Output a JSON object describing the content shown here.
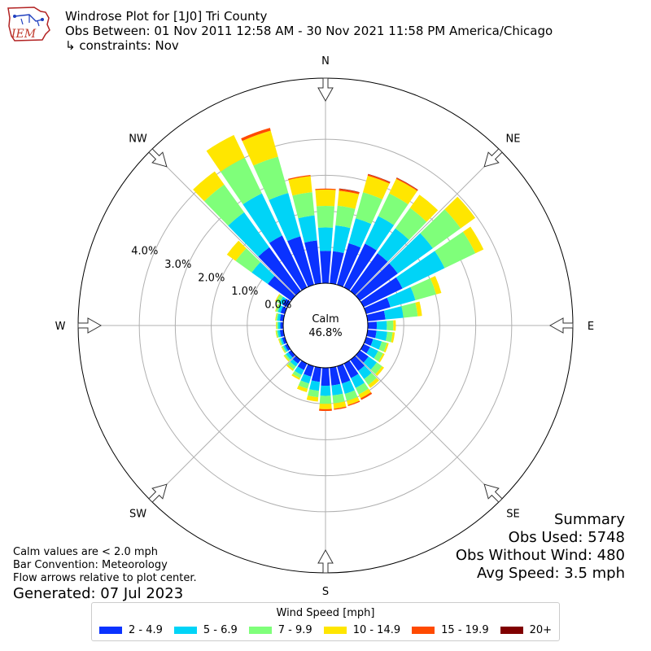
{
  "header": {
    "logo_text": "IEM",
    "title": "Windrose Plot for [1J0] Tri County",
    "subtitle": "Obs Between: 01 Nov 2011 12:58 AM - 30 Nov 2021 11:58 PM America/Chicago",
    "constraints": "↳ constraints: Nov"
  },
  "notes": {
    "calm_def": "Calm values are < 2.0 mph",
    "bar_convention": "Bar Convention: Meteorology",
    "flow_arrows": "Flow arrows relative to plot center.",
    "generated": "Generated: 07 Jul 2023"
  },
  "summary": {
    "heading": "Summary",
    "obs_used": "Obs Used: 5748",
    "obs_without_wind": "Obs Without Wind: 480",
    "avg_speed": "Avg Speed: 3.5 mph"
  },
  "chart_data": {
    "type": "windrose",
    "calm_label": "Calm",
    "calm_value": "46.8%",
    "radial_ticks": [
      {
        "value": 0,
        "label": "0.0%"
      },
      {
        "value": 1,
        "label": "1.0%"
      },
      {
        "value": 2,
        "label": "2.0%"
      },
      {
        "value": 3,
        "label": "3.0%"
      },
      {
        "value": 4,
        "label": "4.0%"
      }
    ],
    "rmax": 5.7,
    "compass": [
      {
        "label": "N",
        "angle": 0
      },
      {
        "label": "NE",
        "angle": 45
      },
      {
        "label": "E",
        "angle": 90
      },
      {
        "label": "SE",
        "angle": 135
      },
      {
        "label": "S",
        "angle": 180
      },
      {
        "label": "SW",
        "angle": 225
      },
      {
        "label": "W",
        "angle": 270
      },
      {
        "label": "NW",
        "angle": 315
      }
    ],
    "legend_title": "Wind Speed [mph]",
    "speed_bins": [
      {
        "label": "2 - 4.9",
        "color": "#0a32ff"
      },
      {
        "label": "5 - 6.9",
        "color": "#00d4f7"
      },
      {
        "label": "7 - 9.9",
        "color": "#7fff7a"
      },
      {
        "label": "10 - 14.9",
        "color": "#ffe600"
      },
      {
        "label": "15 - 19.9",
        "color": "#ff4a00"
      },
      {
        "label": "20+",
        "color": "#800000"
      }
    ],
    "directions": [
      0,
      10,
      20,
      30,
      40,
      50,
      60,
      70,
      80,
      90,
      100,
      110,
      120,
      130,
      140,
      150,
      160,
      170,
      180,
      190,
      200,
      210,
      220,
      230,
      240,
      250,
      260,
      270,
      280,
      290,
      300,
      310,
      320,
      330,
      340,
      350
    ],
    "values": [
      [
        0.9,
        0.65,
        0.6,
        0.45,
        0.03,
        0
      ],
      [
        0.9,
        0.72,
        0.55,
        0.42,
        0.05,
        0.01
      ],
      [
        1.2,
        0.72,
        0.75,
        0.48,
        0.04,
        0.01
      ],
      [
        1.35,
        0.85,
        0.7,
        0.45,
        0.03,
        0.01
      ],
      [
        1.3,
        0.85,
        0.7,
        0.45,
        0,
        0
      ],
      [
        1.3,
        1.2,
        0.95,
        0.5,
        0,
        0
      ],
      [
        1.2,
        1.3,
        0.95,
        0.25,
        0,
        0
      ],
      [
        0.7,
        0.72,
        0.6,
        0.15,
        0,
        0
      ],
      [
        0.5,
        0.5,
        0.4,
        0.12,
        0,
        0
      ],
      [
        0.25,
        0.28,
        0.18,
        0.07,
        0,
        0
      ],
      [
        0.25,
        0.3,
        0.15,
        0.06,
        0,
        0
      ],
      [
        0.2,
        0.25,
        0.15,
        0.05,
        0,
        0
      ],
      [
        0.2,
        0.25,
        0.15,
        0.05,
        0,
        0
      ],
      [
        0.3,
        0.28,
        0.18,
        0.07,
        0,
        0
      ],
      [
        0.38,
        0.28,
        0.2,
        0.1,
        0,
        0
      ],
      [
        0.45,
        0.3,
        0.2,
        0.12,
        0.05,
        0
      ],
      [
        0.5,
        0.3,
        0.2,
        0.12,
        0.03,
        0
      ],
      [
        0.5,
        0.28,
        0.22,
        0.15,
        0.03,
        0
      ],
      [
        0.5,
        0.28,
        0.22,
        0.15,
        0.05,
        0
      ],
      [
        0.4,
        0.25,
        0.18,
        0.12,
        0,
        0
      ],
      [
        0.3,
        0.2,
        0.15,
        0.1,
        0,
        0
      ],
      [
        0.2,
        0.15,
        0.1,
        0.05,
        0,
        0
      ],
      [
        0.13,
        0.1,
        0.1,
        0.05,
        0,
        0
      ],
      [
        0.1,
        0.08,
        0.05,
        0.03,
        0,
        0
      ],
      [
        0.08,
        0.05,
        0.04,
        0.02,
        0,
        0
      ],
      [
        0.08,
        0.05,
        0.04,
        0.02,
        0,
        0
      ],
      [
        0.1,
        0.06,
        0.04,
        0.02,
        0,
        0
      ],
      [
        0.08,
        0.06,
        0.04,
        0.02,
        0,
        0
      ],
      [
        0.1,
        0.07,
        0.04,
        0.02,
        0,
        0
      ],
      [
        0.12,
        0.08,
        0.06,
        0.02,
        0,
        0
      ],
      [
        0.15,
        0.1,
        0.1,
        0.03,
        0,
        0
      ],
      [
        0.8,
        0.55,
        0.55,
        0.3,
        0,
        0
      ],
      [
        1.5,
        1.2,
        0.95,
        0.45,
        0,
        0
      ],
      [
        1.6,
        1.3,
        1.1,
        0.7,
        0,
        0
      ],
      [
        1.4,
        1.25,
        1.05,
        0.75,
        0.08,
        0
      ],
      [
        1.2,
        0.7,
        0.65,
        0.45,
        0.03,
        0
      ]
    ]
  }
}
